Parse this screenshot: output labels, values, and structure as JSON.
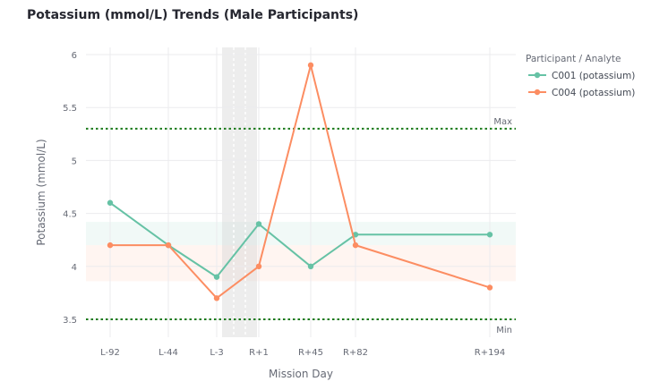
{
  "chart_data": {
    "type": "line",
    "title": "Potassium (mmol/L) Trends (Male Participants)",
    "xlabel": "Mission Day",
    "ylabel": "Potassium (mmol/L)",
    "categories": [
      "L-92",
      "L-44",
      "L-3",
      "R+1",
      "R+45",
      "R+82",
      "R+194"
    ],
    "category_positions": [
      -92,
      -44,
      -3,
      1,
      45,
      82,
      194
    ],
    "ylim": [
      3.35,
      6.1
    ],
    "yticks": [
      3.5,
      4,
      4.5,
      5,
      5.5,
      6
    ],
    "ytick_labels": [
      "3.5",
      "4",
      "4.5",
      "5",
      "5.5",
      "6"
    ],
    "grid": true,
    "legend": {
      "title": "Participant / Analyte",
      "placement": "right"
    },
    "series": [
      {
        "name": "C001 (potassium)",
        "color": "#66c2a5",
        "values": [
          4.6,
          4.2,
          3.9,
          4.4,
          4.0,
          4.3,
          4.3
        ]
      },
      {
        "name": "C004 (potassium)",
        "color": "#fc8d62",
        "values": [
          4.2,
          4.2,
          3.7,
          4.0,
          5.9,
          4.2,
          3.8
        ]
      }
    ],
    "reference_lines": [
      {
        "label": "Max",
        "value": 5.3,
        "color": "#1a7a1a"
      },
      {
        "label": "Min",
        "value": 3.5,
        "color": "#1a7a1a"
      }
    ],
    "bands": [
      {
        "from": 4.2,
        "to": 4.42,
        "color": "#66c2a5"
      },
      {
        "from": 3.86,
        "to": 4.2,
        "color": "#fc8d62"
      }
    ],
    "flight_window": {
      "from": 0,
      "to": 1
    }
  }
}
